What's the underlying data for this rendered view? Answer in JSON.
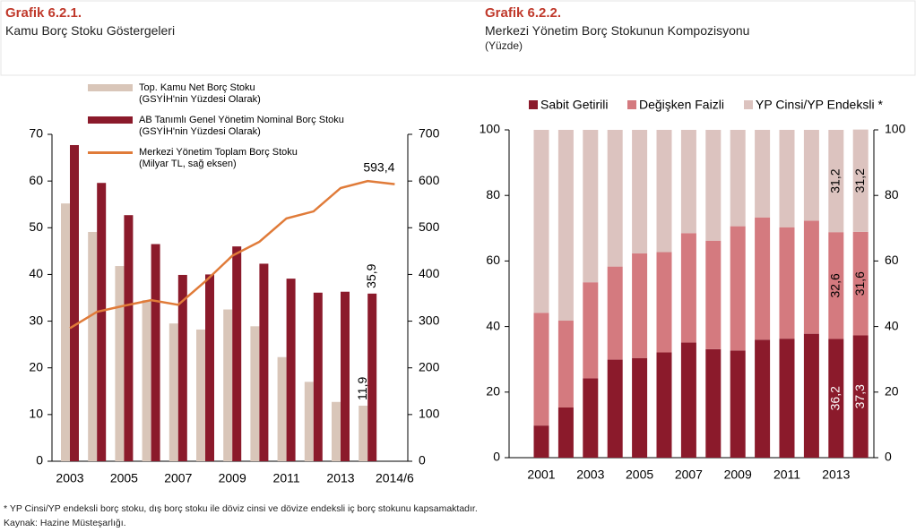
{
  "chart_data": [
    {
      "type": "bar",
      "figure_label": "Grafik 6.2.1.",
      "title": "Kamu Borç Stoku Göstergeleri",
      "categories": [
        "2003",
        null,
        "2005",
        null,
        "2007",
        null,
        "2009",
        null,
        "2011",
        null,
        "2013",
        null,
        "2014/6"
      ],
      "series": [
        {
          "name": "Top. Kamu Net Borç Stoku\n(GSYİH'nin Yüzdesi Olarak)",
          "type": "bar",
          "color": "#d9c6b9",
          "values": [
            55.2,
            49.1,
            41.8,
            34.5,
            29.5,
            28.2,
            32.5,
            28.9,
            22.3,
            17.0,
            12.7,
            11.9,
            null
          ],
          "value_labels": [
            null,
            null,
            null,
            null,
            null,
            null,
            null,
            null,
            null,
            null,
            null,
            "11,9",
            null
          ]
        },
        {
          "name": "AB Tanımlı Genel Yönetim Nominal Borç Stoku\n(GSYİH'nin Yüzdesi Olarak)",
          "type": "bar",
          "color": "#8b1a2b",
          "values": [
            67.7,
            59.6,
            52.7,
            46.5,
            39.9,
            40.0,
            46.0,
            42.3,
            39.1,
            36.1,
            36.3,
            35.9,
            null
          ],
          "value_labels": [
            null,
            null,
            null,
            null,
            null,
            null,
            null,
            null,
            null,
            null,
            null,
            "35,9",
            null
          ]
        },
        {
          "name": "Merkezi Yönetim Toplam Borç Stoku\n(Milyar TL, sağ eksen)",
          "type": "line",
          "axis": "y2",
          "color": "#e07b39",
          "values": [
            285,
            320,
            333,
            345,
            335,
            385,
            440,
            470,
            520,
            535,
            585,
            600,
            593.4
          ],
          "value_labels": [
            null,
            null,
            null,
            null,
            null,
            null,
            null,
            null,
            null,
            null,
            null,
            null,
            "593,4"
          ]
        }
      ],
      "ylim": [
        0,
        70
      ],
      "yticks": [
        0,
        10,
        20,
        30,
        40,
        50,
        60,
        70
      ],
      "y2lim": [
        0,
        700
      ],
      "y2ticks": [
        0,
        100,
        200,
        300,
        400,
        500,
        600,
        700
      ]
    },
    {
      "type": "stacked_bar",
      "figure_label": "Grafik 6.2.2.",
      "title": "Merkezi Yönetim Borç Stokunun Kompozisyonu",
      "subtitle": "(Yüzde)",
      "categories": [
        "2001",
        null,
        "2003",
        null,
        "2005",
        null,
        "2007",
        null,
        "2009",
        null,
        "2011",
        null,
        "2013",
        null
      ],
      "series": [
        {
          "name": "Sabit Getirili",
          "color": "#8b1a2b",
          "values": [
            9.8,
            15.3,
            24.2,
            29.9,
            30.4,
            32.1,
            35.1,
            33.1,
            32.7,
            36.0,
            36.3,
            37.8,
            36.2,
            37.3
          ],
          "value_labels": [
            null,
            null,
            null,
            null,
            null,
            null,
            null,
            null,
            null,
            null,
            null,
            null,
            "36,2",
            "37,3"
          ]
        },
        {
          "name": "Değişken Faizli",
          "color": "#d47a7f",
          "values": [
            34.4,
            26.5,
            29.3,
            28.4,
            31.9,
            30.6,
            33.4,
            33.1,
            37.9,
            37.3,
            34.0,
            34.5,
            32.6,
            31.6
          ],
          "value_labels": [
            null,
            null,
            null,
            null,
            null,
            null,
            null,
            null,
            null,
            null,
            null,
            null,
            "32,6",
            "31,6"
          ]
        },
        {
          "name": "YP Cinsi/YP Endeksli *",
          "color": "#dcc3bf",
          "values": [
            55.8,
            58.2,
            46.5,
            41.7,
            37.7,
            37.3,
            31.5,
            33.8,
            29.4,
            26.7,
            29.7,
            27.7,
            31.2,
            31.2
          ],
          "value_labels": [
            null,
            null,
            null,
            null,
            null,
            null,
            null,
            null,
            null,
            null,
            null,
            null,
            "31,2",
            "31,2"
          ]
        }
      ],
      "ylim": [
        0,
        100
      ],
      "yticks": [
        0,
        20,
        40,
        60,
        80,
        100
      ],
      "y2lim": [
        0,
        100
      ],
      "y2ticks": [
        0,
        20,
        40,
        60,
        80,
        100
      ]
    }
  ],
  "footnote": "* YP Cinsi/YP endeksli borç stoku, dış borç stoku ile döviz cinsi ve dövize endeksli iç borç stokunu kapsamaktadır.",
  "source": "Kaynak: Hazine Müsteşarlığı."
}
